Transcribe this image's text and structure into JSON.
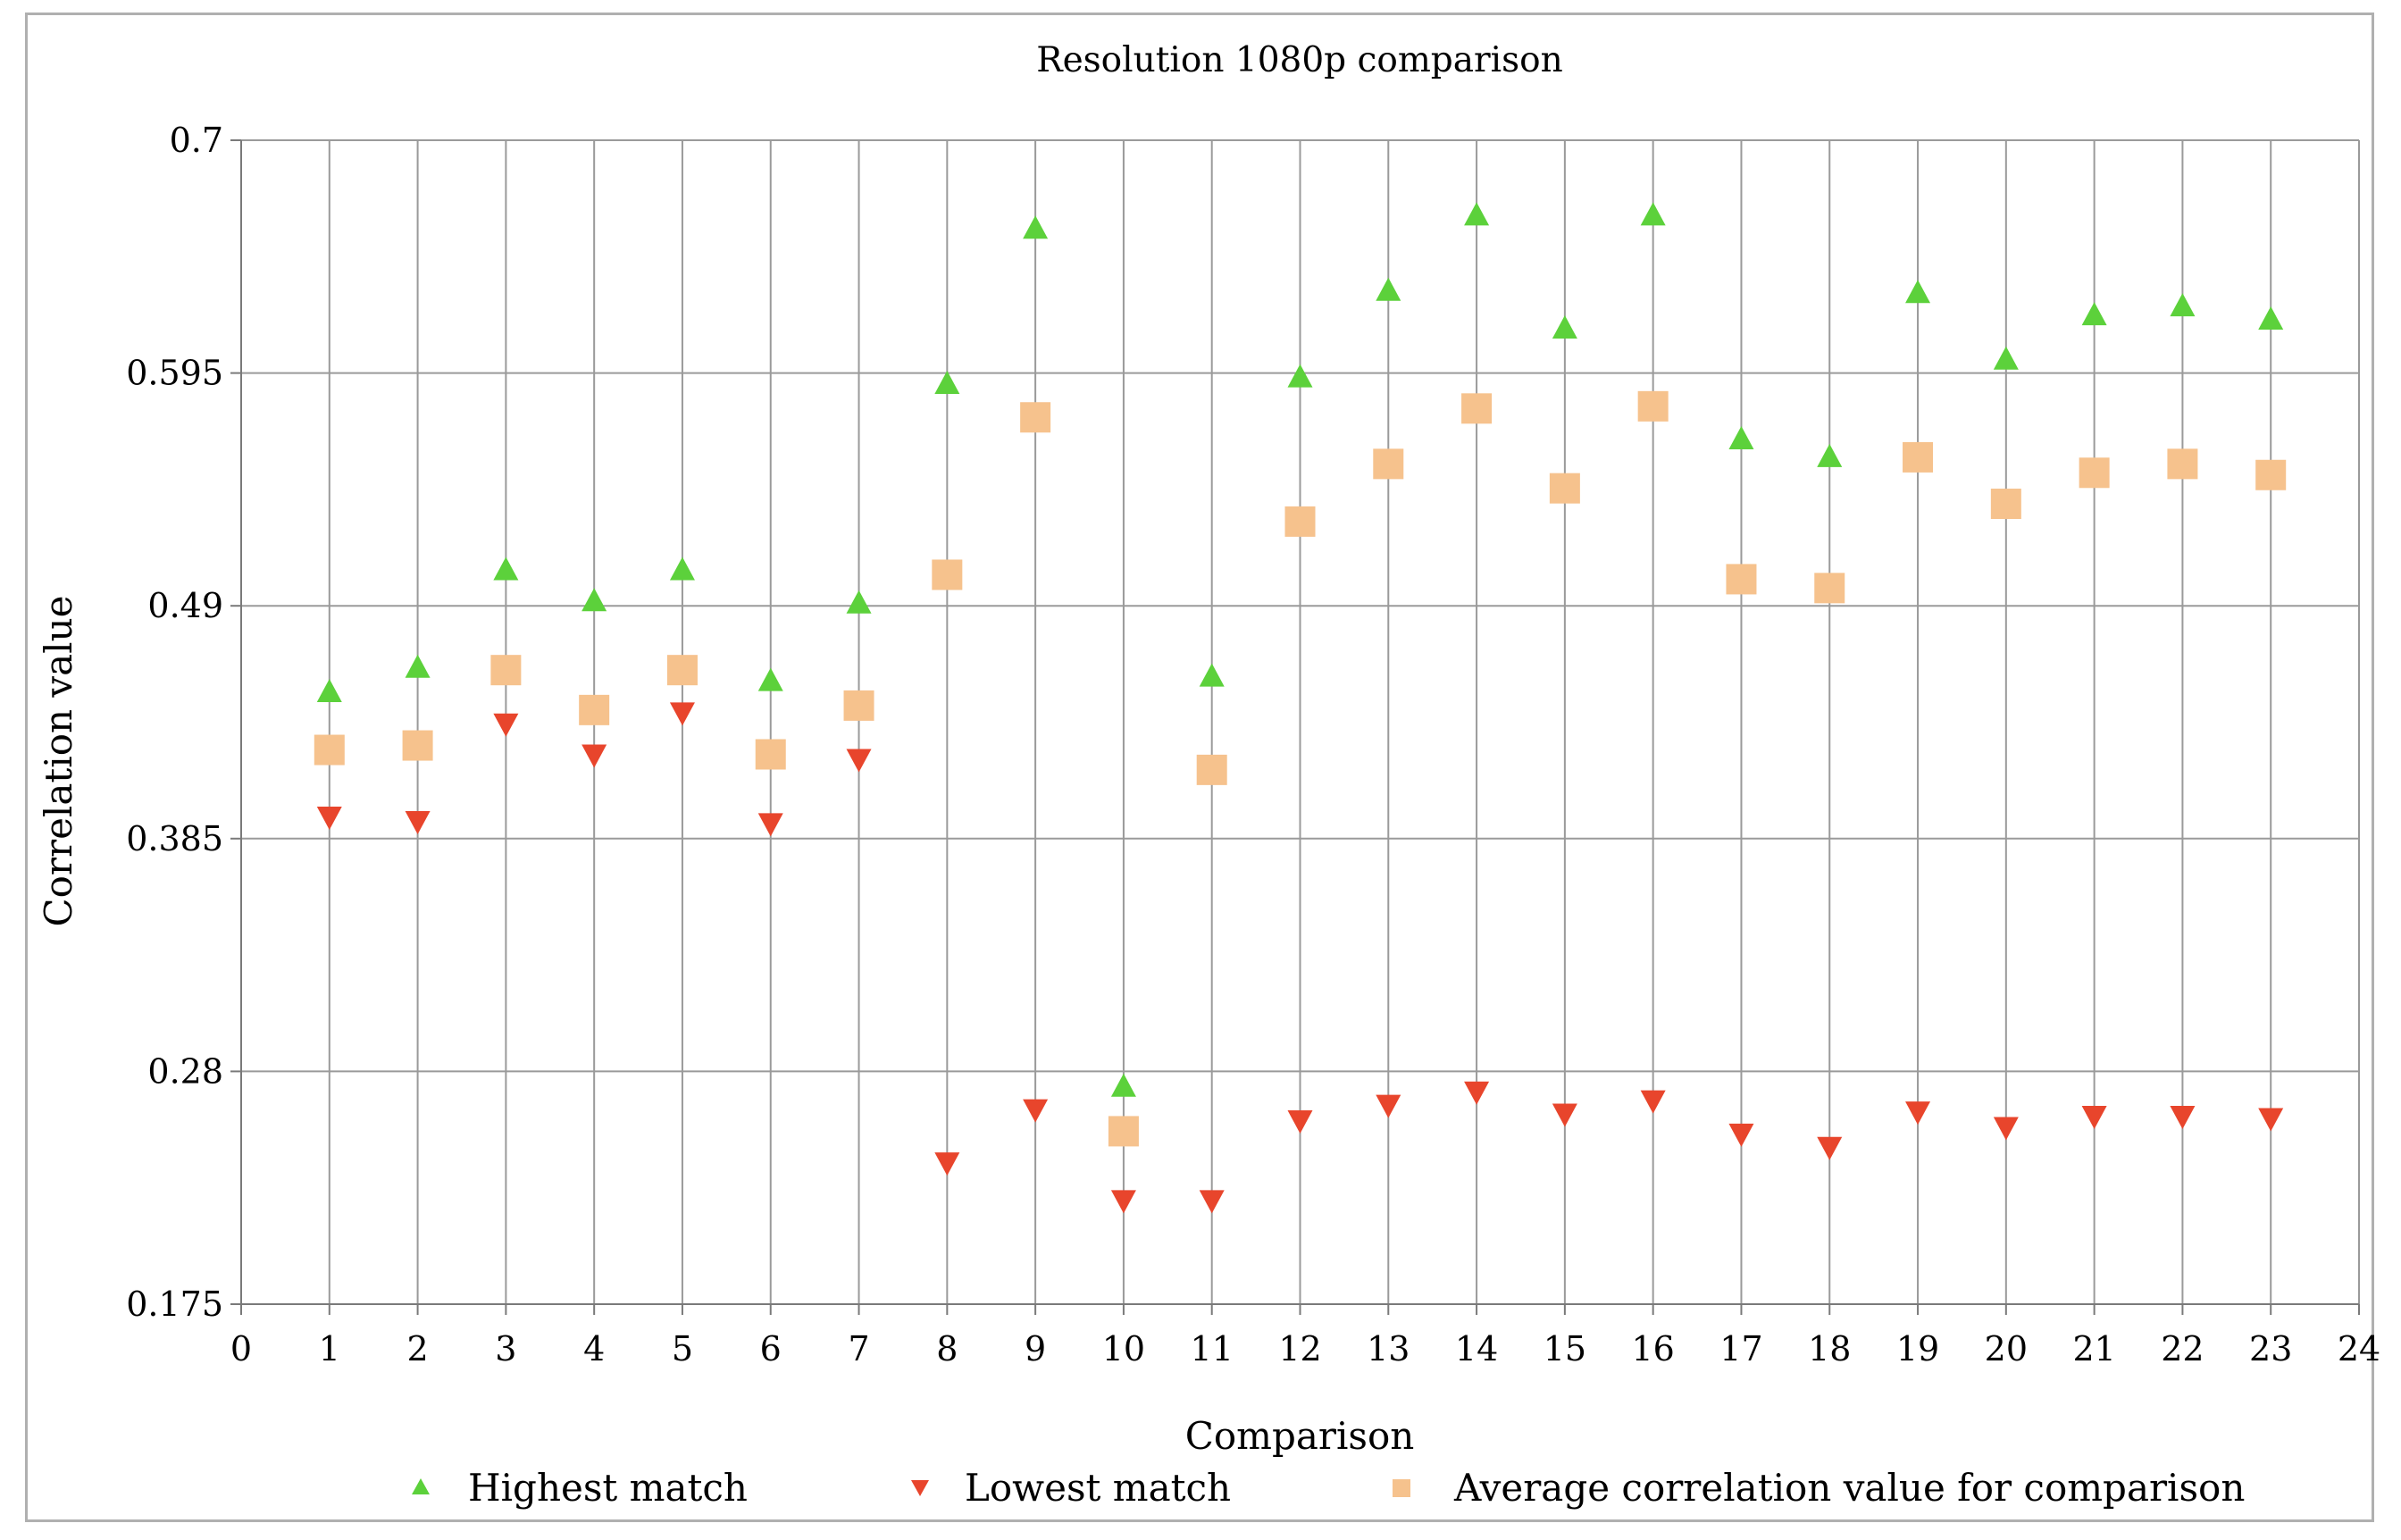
{
  "chart_data": {
    "type": "scatter",
    "title": "Resolution 1080p comparison",
    "xlabel": "Comparison",
    "ylabel": "Correlation value",
    "xlim": [
      0,
      24
    ],
    "ylim": [
      0.175,
      0.7
    ],
    "x_ticks": [
      "0",
      "1",
      "2",
      "3",
      "4",
      "5",
      "6",
      "7",
      "8",
      "9",
      "10",
      "11",
      "12",
      "13",
      "14",
      "15",
      "16",
      "17",
      "18",
      "19",
      "20",
      "21",
      "22",
      "23",
      "24"
    ],
    "y_ticks": [
      "0.175",
      "0.28",
      "0.385",
      "0.49",
      "0.595",
      "0.7"
    ],
    "grid": true,
    "legend_position": "bottom",
    "x": [
      1,
      2,
      3,
      4,
      5,
      6,
      7,
      8,
      9,
      10,
      11,
      12,
      13,
      14,
      15,
      16,
      17,
      18,
      19,
      20,
      21,
      22,
      23
    ],
    "series": [
      {
        "name": "Highest match",
        "marker": "triangle-up",
        "color": "#5cd13b",
        "values": [
          0.451,
          0.462,
          0.506,
          0.492,
          0.506,
          0.456,
          0.491,
          0.59,
          0.66,
          0.273,
          0.458,
          0.593,
          0.632,
          0.666,
          0.615,
          0.666,
          0.565,
          0.557,
          0.631,
          0.601,
          0.621,
          0.625,
          0.619
        ]
      },
      {
        "name": "Lowest match",
        "marker": "triangle-down",
        "color": "#e8452c",
        "values": [
          0.395,
          0.393,
          0.437,
          0.423,
          0.442,
          0.392,
          0.421,
          0.239,
          0.263,
          0.222,
          0.222,
          0.258,
          0.265,
          0.271,
          0.261,
          0.267,
          0.252,
          0.246,
          0.262,
          0.255,
          0.26,
          0.26,
          0.259
        ]
      },
      {
        "name": "Average correlation value for comparison",
        "marker": "square",
        "color": "#f6c28d",
        "values": [
          0.425,
          0.427,
          0.461,
          0.443,
          0.461,
          0.423,
          0.445,
          0.504,
          0.575,
          0.253,
          0.416,
          0.528,
          0.554,
          0.579,
          0.543,
          0.58,
          0.502,
          0.498,
          0.557,
          0.536,
          0.55,
          0.554,
          0.549
        ]
      }
    ]
  }
}
